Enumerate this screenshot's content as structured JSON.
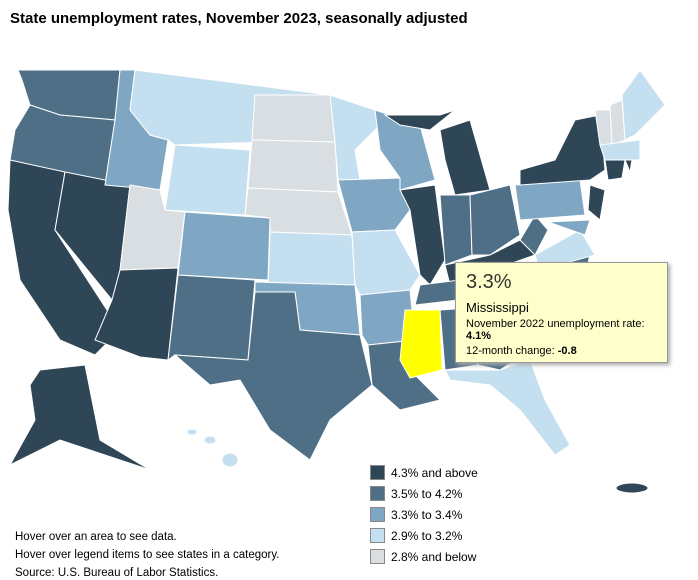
{
  "header": {
    "title": "State unemployment rates, November 2023, seasonally adjusted"
  },
  "tooltip": {
    "rate": "3.3%",
    "state": "Mississippi",
    "prior_label": "November 2022 unemployment rate:",
    "prior_value": "4.1%",
    "change_label": "12-month change:",
    "change_value": "-0.8"
  },
  "legend": {
    "items": [
      {
        "label": "4.3% and above",
        "color": "#2f4656"
      },
      {
        "label": "3.5% to 4.2%",
        "color": "#4f6f87"
      },
      {
        "label": "3.3% to 3.4%",
        "color": "#7fa7c4"
      },
      {
        "label": "2.9% to 3.2%",
        "color": "#c4e0f0"
      },
      {
        "label": "2.8% and below",
        "color": "#d8dee2"
      }
    ]
  },
  "notes": [
    "Hover over an area to see data.",
    "Hover over legend items to see states in a category.",
    "Source: U.S. Bureau of Labor Statistics."
  ]
}
